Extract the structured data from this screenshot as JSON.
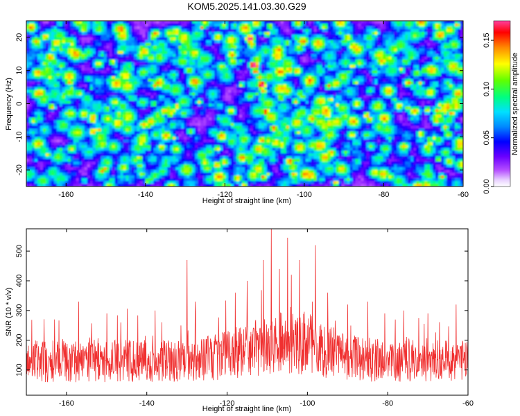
{
  "chart_data": [
    {
      "type": "heatmap",
      "title": "KOM5.2025.141.03.30.G29",
      "xlabel": "Height of straight line (km)",
      "ylabel": "Frequency (Hz)",
      "xlim": [
        -170,
        -60
      ],
      "ylim": [
        -25,
        25
      ],
      "xticks": [
        -160,
        -140,
        -120,
        -100,
        -80,
        -60
      ],
      "yticks": [
        20,
        10,
        0,
        -10,
        -20
      ],
      "colorbar": {
        "label": "Normalized spectral amplitude",
        "range": [
          0.0,
          0.17
        ],
        "ticks": [
          0.0,
          0.05,
          0.1,
          0.15
        ],
        "tick_labels": [
          "0.00",
          "0.05",
          "0.10",
          "0.15"
        ],
        "colors": [
          "#ffffff",
          "#b44cff",
          "#6a00ff",
          "#0000ff",
          "#0088ff",
          "#00e0ff",
          "#00ff80",
          "#60ff00",
          "#ffff00",
          "#ff8800",
          "#ff0000",
          "#ff40a0"
        ]
      },
      "features": {
        "ridge": [
          {
            "x": -114,
            "y": 20,
            "v": 0.16
          },
          {
            "x": -113,
            "y": 12,
            "v": 0.17
          },
          {
            "x": -111,
            "y": 6,
            "v": 0.16
          },
          {
            "x": -110,
            "y": -2,
            "v": 0.13
          },
          {
            "x": -108,
            "y": -7,
            "v": 0.12
          },
          {
            "x": -106,
            "y": -12,
            "v": 0.11
          },
          {
            "x": -104,
            "y": -17,
            "v": 0.13
          },
          {
            "x": -103,
            "y": -21,
            "v": 0.11
          }
        ],
        "background_level": 0.04
      }
    },
    {
      "type": "line",
      "title": "",
      "xlabel": "Height of straight line (km)",
      "ylabel": "SNR (10 * v/v)",
      "xlim": [
        -170,
        -60
      ],
      "ylim": [
        15,
        575
      ],
      "xticks": [
        -160,
        -140,
        -120,
        -100,
        -80,
        -60
      ],
      "yticks": [
        100,
        200,
        300,
        400,
        500
      ],
      "series": [
        {
          "color": "#f03030",
          "base": 130,
          "spikes": [
            {
              "x": -163,
              "y": 270
            },
            {
              "x": -157,
              "y": 330
            },
            {
              "x": -150,
              "y": 290
            },
            {
              "x": -138,
              "y": 300
            },
            {
              "x": -130,
              "y": 470
            },
            {
              "x": -128,
              "y": 330
            },
            {
              "x": -118,
              "y": 360
            },
            {
              "x": -115,
              "y": 400
            },
            {
              "x": -111,
              "y": 470
            },
            {
              "x": -109,
              "y": 580
            },
            {
              "x": -107,
              "y": 440
            },
            {
              "x": -105,
              "y": 545
            },
            {
              "x": -104,
              "y": 420
            },
            {
              "x": -102,
              "y": 470
            },
            {
              "x": -98,
              "y": 520
            },
            {
              "x": -95,
              "y": 360
            },
            {
              "x": -90,
              "y": 320
            },
            {
              "x": -85,
              "y": 330
            },
            {
              "x": -76,
              "y": 300
            },
            {
              "x": -70,
              "y": 290
            },
            {
              "x": -63,
              "y": 320
            }
          ]
        }
      ]
    }
  ]
}
